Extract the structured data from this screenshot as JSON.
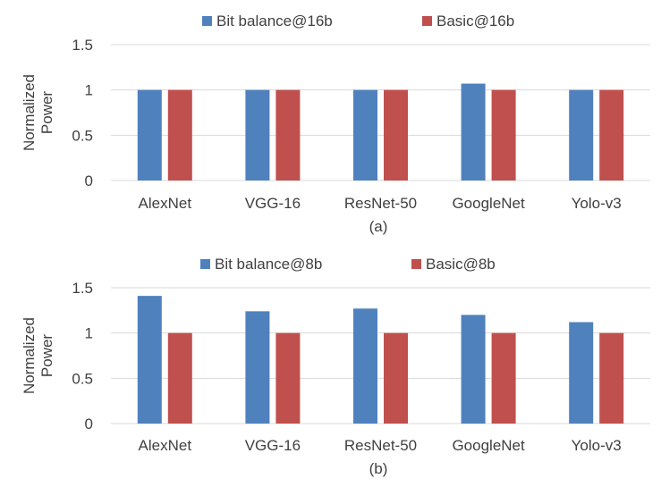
{
  "colors": {
    "series_blue": "#4f81bd",
    "series_red": "#c0504d",
    "grid": "#d9d9d9",
    "text": "#404040"
  },
  "chart_data": [
    {
      "type": "bar",
      "panel_label": "(a)",
      "ylabel_lines": [
        "Normalized",
        "Power"
      ],
      "categories": [
        "AlexNet",
        "VGG-16",
        "ResNet-50",
        "GoogleNet",
        "Yolo-v3"
      ],
      "series": [
        {
          "name": "Bit balance@16b",
          "values": [
            1.0,
            1.0,
            1.0,
            1.07,
            1.0
          ]
        },
        {
          "name": "Basic@16b",
          "values": [
            1.0,
            1.0,
            1.0,
            1.0,
            1.0
          ]
        }
      ],
      "ylim": [
        0,
        1.5
      ],
      "yticks": [
        "0",
        "0.5",
        "1",
        "1.5"
      ],
      "grid": true,
      "legend_position": "top"
    },
    {
      "type": "bar",
      "panel_label": "(b)",
      "ylabel_lines": [
        "Normalized",
        "Power"
      ],
      "categories": [
        "AlexNet",
        "VGG-16",
        "ResNet-50",
        "GoogleNet",
        "Yolo-v3"
      ],
      "series": [
        {
          "name": "Bit balance@8b",
          "values": [
            1.41,
            1.24,
            1.27,
            1.2,
            1.12
          ]
        },
        {
          "name": "Basic@8b",
          "values": [
            1.0,
            1.0,
            1.0,
            1.0,
            1.0
          ]
        }
      ],
      "ylim": [
        0,
        1.5
      ],
      "yticks": [
        "0",
        "0.5",
        "1",
        "1.5"
      ],
      "grid": true,
      "legend_position": "top"
    }
  ]
}
